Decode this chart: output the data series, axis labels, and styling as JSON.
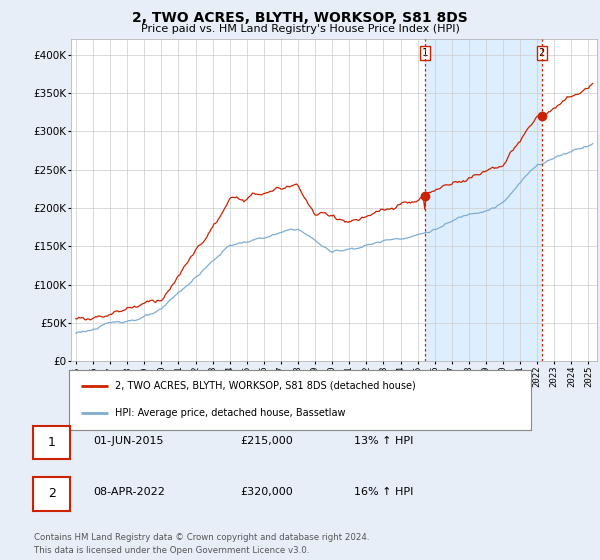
{
  "title": "2, TWO ACRES, BLYTH, WORKSOP, S81 8DS",
  "subtitle": "Price paid vs. HM Land Registry's House Price Index (HPI)",
  "ylim": [
    0,
    420000
  ],
  "yticks": [
    0,
    50000,
    100000,
    150000,
    200000,
    250000,
    300000,
    350000,
    400000
  ],
  "ytick_labels": [
    "£0",
    "£50K",
    "£100K",
    "£150K",
    "£200K",
    "£250K",
    "£300K",
    "£350K",
    "£400K"
  ],
  "hpi_color": "#7eadd4",
  "price_color": "#cc2200",
  "vline_color": "#cc2200",
  "marker1_year": 2015.42,
  "marker1_price": 215000,
  "marker1_label": "1",
  "marker2_year": 2022.27,
  "marker2_price": 320000,
  "marker2_label": "2",
  "shade_color": "#ddeeff",
  "legend_entries": [
    "2, TWO ACRES, BLYTH, WORKSOP, S81 8DS (detached house)",
    "HPI: Average price, detached house, Bassetlaw"
  ],
  "table_rows": [
    {
      "num": "1",
      "date": "01-JUN-2015",
      "price": "£215,000",
      "hpi": "13% ↑ HPI"
    },
    {
      "num": "2",
      "date": "08-APR-2022",
      "price": "£320,000",
      "hpi": "16% ↑ HPI"
    }
  ],
  "footer": "Contains HM Land Registry data © Crown copyright and database right 2024.\nThis data is licensed under the Open Government Licence v3.0.",
  "background_color": "#e8eef8",
  "plot_bg_color": "#ffffff",
  "grid_color": "#cccccc"
}
